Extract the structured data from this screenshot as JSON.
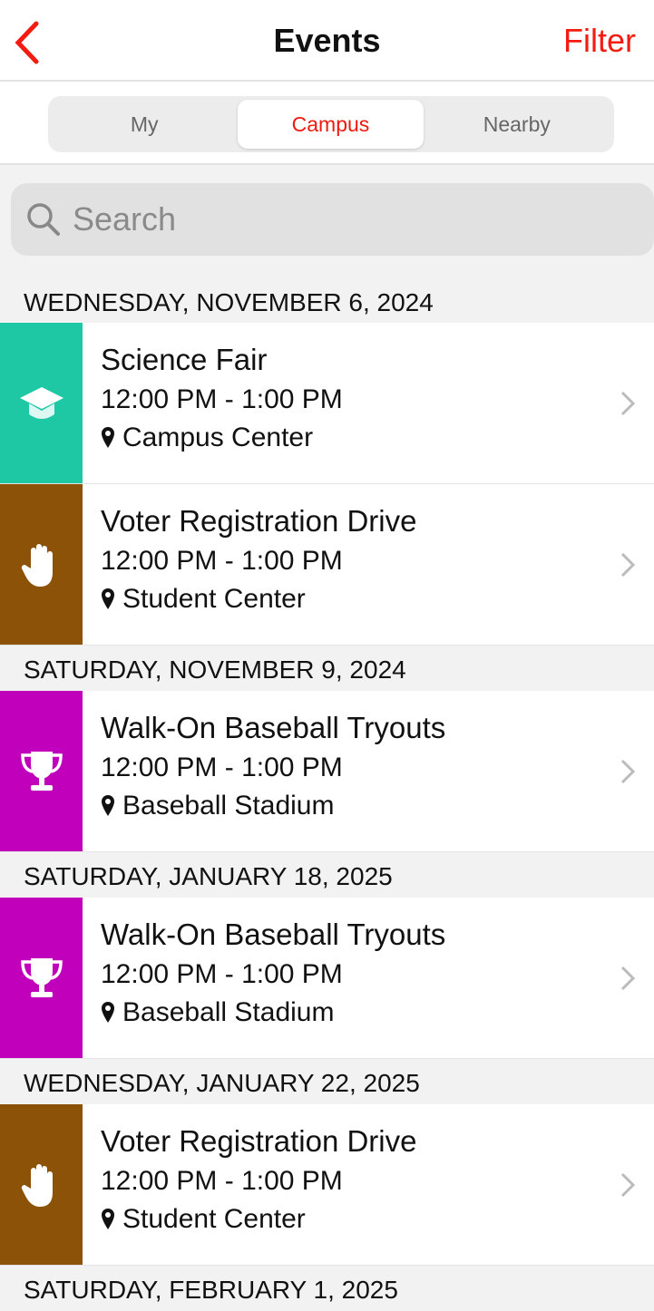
{
  "nav": {
    "title": "Events",
    "filter_label": "Filter",
    "back_icon": "chevron-left-icon"
  },
  "segments": [
    {
      "label": "My",
      "active": false
    },
    {
      "label": "Campus",
      "active": true
    },
    {
      "label": "Nearby",
      "active": false
    }
  ],
  "search": {
    "placeholder": "Search",
    "value": ""
  },
  "colors": {
    "accent": "#f41b10",
    "academic": "#1ec8a5",
    "civic": "#8b5208",
    "sports": "#c000bb"
  },
  "sections": [
    {
      "date": "WEDNESDAY, NOVEMBER 6, 2024",
      "events": [
        {
          "name": "Science Fair",
          "time": "12:00 PM - 1:00 PM",
          "location": "Campus Center",
          "icon": "graduation-cap-icon",
          "color": "#1ec8a5"
        },
        {
          "name": "Voter Registration Drive",
          "time": "12:00 PM - 1:00 PM",
          "location": "Student Center",
          "icon": "hand-icon",
          "color": "#8b5208"
        }
      ]
    },
    {
      "date": "SATURDAY, NOVEMBER 9, 2024",
      "events": [
        {
          "name": "Walk-On Baseball Tryouts",
          "time": "12:00 PM - 1:00 PM",
          "location": "Baseball Stadium",
          "icon": "trophy-icon",
          "color": "#c000bb"
        }
      ]
    },
    {
      "date": "SATURDAY, JANUARY 18, 2025",
      "events": [
        {
          "name": "Walk-On Baseball Tryouts",
          "time": "12:00 PM - 1:00 PM",
          "location": "Baseball Stadium",
          "icon": "trophy-icon",
          "color": "#c000bb"
        }
      ]
    },
    {
      "date": "WEDNESDAY, JANUARY 22, 2025",
      "events": [
        {
          "name": "Voter Registration Drive",
          "time": "12:00 PM - 1:00 PM",
          "location": "Student Center",
          "icon": "hand-icon",
          "color": "#8b5208"
        }
      ]
    },
    {
      "date": "SATURDAY, FEBRUARY 1, 2025",
      "events": []
    }
  ]
}
